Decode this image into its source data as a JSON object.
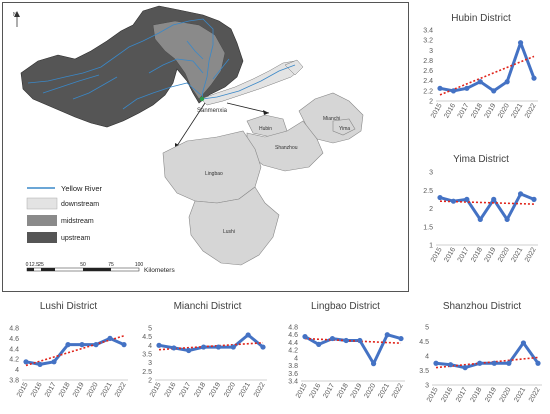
{
  "map": {
    "north_label": "N",
    "legend": {
      "river": "Yellow River",
      "downstream": "downstream",
      "midstream": "midstream",
      "upstream": "upstream"
    },
    "colors": {
      "river": "#3a88c8",
      "downstream": "#e3e3e3",
      "midstream": "#8a8a8a",
      "upstream": "#555555",
      "inset_district": "#d6d6d6"
    },
    "point_label": "Sanmenxia",
    "districts": {
      "hubin": "Hubin",
      "mianchi": "Mianchi",
      "yima": "Yima",
      "shanzhou": "Shanzhou",
      "lingbao": "Lingbao",
      "lushi": "Lushi"
    },
    "scale": {
      "ticks": [
        "0",
        "12.5",
        "25",
        "50",
        "75",
        "100"
      ],
      "unit": "Kilometers"
    }
  },
  "chart_data": [
    {
      "type": "line",
      "title": "Hubin District",
      "x": [
        "2015",
        "2016",
        "2017",
        "2018",
        "2019",
        "2020",
        "2021",
        "2022"
      ],
      "values": [
        2.25,
        2.2,
        2.25,
        2.38,
        2.2,
        2.38,
        3.15,
        2.45
      ],
      "ylim": [
        2,
        3.4
      ],
      "yticks": [
        "2",
        "2.2",
        "2.4",
        "2.6",
        "2.8",
        "3",
        "3.2",
        "3.4"
      ],
      "trend": [
        2.12,
        2.88
      ],
      "colors": {
        "line": "#4472c4",
        "trend": "#e0241b"
      }
    },
    {
      "type": "line",
      "title": "Yima District",
      "x": [
        "2015",
        "2016",
        "2017",
        "2018",
        "2019",
        "2020",
        "2021",
        "2022"
      ],
      "values": [
        2.3,
        2.2,
        2.25,
        1.7,
        2.25,
        1.7,
        2.4,
        2.25
      ],
      "ylim": [
        1,
        3
      ],
      "yticks": [
        "1",
        "1.5",
        "2",
        "2.5",
        "3"
      ],
      "trend": [
        2.2,
        2.12
      ],
      "colors": {
        "line": "#4472c4",
        "trend": "#e0241b"
      }
    },
    {
      "type": "line",
      "title": "Lushi District",
      "x": [
        "2015",
        "2016",
        "2017",
        "2018",
        "2019",
        "2020",
        "2021",
        "2022"
      ],
      "values": [
        4.15,
        4.1,
        4.15,
        4.48,
        4.48,
        4.48,
        4.6,
        4.48
      ],
      "ylim": [
        3.8,
        4.8
      ],
      "yticks": [
        "3.8",
        "4",
        "4.2",
        "4.4",
        "4.6",
        "4.8"
      ],
      "trend": [
        4.08,
        4.65
      ],
      "colors": {
        "line": "#4472c4",
        "trend": "#e0241b"
      }
    },
    {
      "type": "line",
      "title": "Mianchi District",
      "x": [
        "2015",
        "2016",
        "2017",
        "2018",
        "2019",
        "2020",
        "2021",
        "2022"
      ],
      "values": [
        4,
        3.85,
        3.7,
        3.9,
        3.9,
        3.9,
        4.6,
        3.9
      ],
      "ylim": [
        2,
        5
      ],
      "yticks": [
        "2",
        "2.5",
        "3",
        "3.5",
        "4",
        "4.5",
        "5"
      ],
      "trend": [
        3.75,
        4.15
      ],
      "colors": {
        "line": "#4472c4",
        "trend": "#e0241b"
      }
    },
    {
      "type": "line",
      "title": "Lingbao District",
      "x": [
        "2015",
        "2016",
        "2017",
        "2018",
        "2019",
        "2020",
        "2021",
        "2022"
      ],
      "values": [
        4.55,
        4.35,
        4.5,
        4.45,
        4.45,
        3.85,
        4.6,
        4.5
      ],
      "ylim": [
        3.4,
        4.8
      ],
      "yticks": [
        "3.4",
        "3.6",
        "3.8",
        "4",
        "4.2",
        "4.4",
        "4.6",
        "4.8"
      ],
      "trend": [
        4.5,
        4.38
      ],
      "colors": {
        "line": "#4472c4",
        "trend": "#e0241b"
      }
    },
    {
      "type": "line",
      "title": "Shanzhou District",
      "x": [
        "2015",
        "2016",
        "2017",
        "2018",
        "2019",
        "2020",
        "2021",
        "2022"
      ],
      "values": [
        3.75,
        3.7,
        3.6,
        3.75,
        3.75,
        3.75,
        4.45,
        3.75
      ],
      "ylim": [
        3,
        5
      ],
      "yticks": [
        "3",
        "3.5",
        "4",
        "4.5",
        "5"
      ],
      "trend": [
        3.6,
        3.95
      ],
      "colors": {
        "line": "#4472c4",
        "trend": "#e0241b"
      }
    }
  ]
}
